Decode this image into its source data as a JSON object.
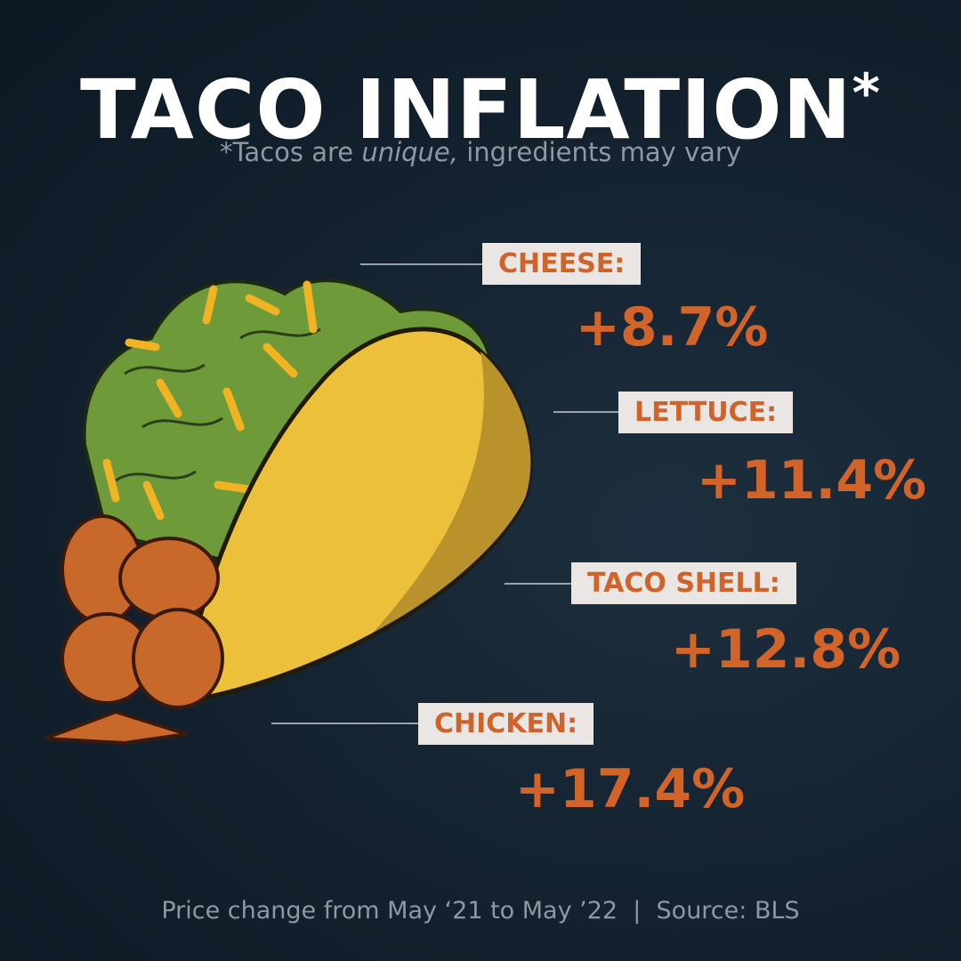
{
  "title": "TACO INFLATION",
  "title_mark": "*",
  "subtitle": {
    "prefix": "*Tacos are ",
    "emphasis": "unique,",
    "suffix": " ingredients may vary"
  },
  "items": [
    {
      "label": "CHEESE:",
      "value": "+8.7%"
    },
    {
      "label": "LETTUCE:",
      "value": "+11.4%"
    },
    {
      "label": "TACO SHELL:",
      "value": "+12.8%"
    },
    {
      "label": "CHICKEN:",
      "value": "+17.4%"
    }
  ],
  "footer": "Price change from May ‘21 to May ’22  |  Source: BLS"
}
